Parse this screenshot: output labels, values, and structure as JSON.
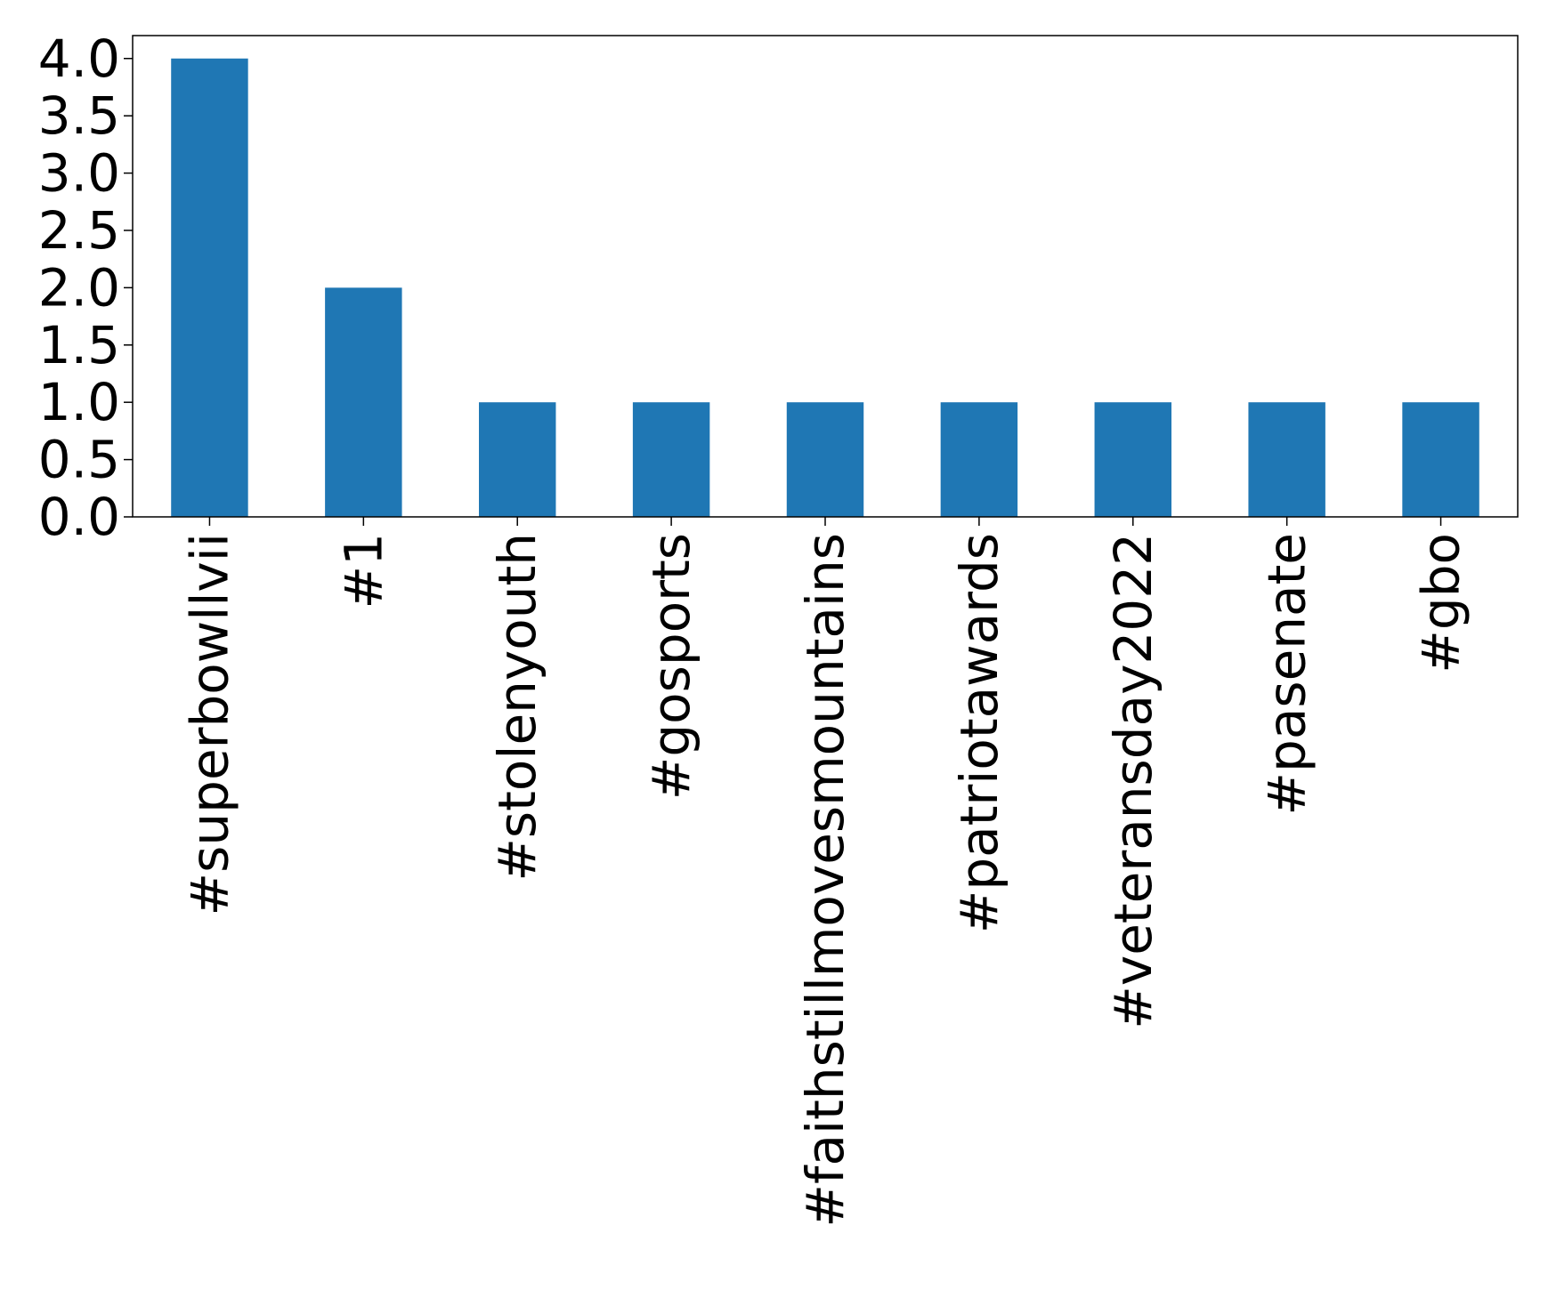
{
  "chart_data": {
    "type": "bar",
    "title": "",
    "xlabel": "",
    "ylabel": "",
    "categories": [
      "#superbowllvii",
      "#1",
      "#stolenyouth",
      "#gosports",
      "#faithstillmovesmountains",
      "#patriotawards",
      "#veteransday2022",
      "#pasenate",
      "#gbo"
    ],
    "values": [
      4,
      2,
      1,
      1,
      1,
      1,
      1,
      1,
      1
    ],
    "ylim": [
      0,
      4.2
    ],
    "yticks": [
      0.0,
      0.5,
      1.0,
      1.5,
      2.0,
      2.5,
      3.0,
      3.5,
      4.0
    ],
    "ytick_labels": [
      "0.0",
      "0.5",
      "1.0",
      "1.5",
      "2.0",
      "2.5",
      "3.0",
      "3.5",
      "4.0"
    ],
    "bar_color": "#1f77b4",
    "grid": false,
    "legend": "none"
  }
}
